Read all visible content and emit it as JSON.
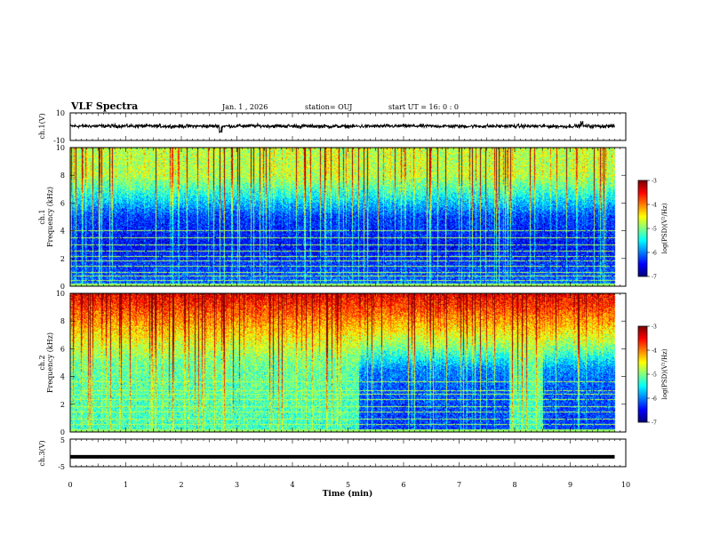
{
  "header": {
    "title": "VLF Spectra",
    "date": "Jan. 1 , 2026",
    "station": "station= OUJ",
    "start": "start UT = 16: 0 : 0"
  },
  "colors": {
    "trace": "#000000",
    "colormap": [
      "#00007f",
      "#0000ff",
      "#0080ff",
      "#00ffff",
      "#80ff80",
      "#ffff00",
      "#ff8000",
      "#ff0000",
      "#7f0000"
    ]
  },
  "chart_data": [
    {
      "type": "line",
      "name": "ch1-waveform",
      "ylabel": "ch.1(V)",
      "ylim": [
        -10,
        10
      ],
      "y_tick_labels": [
        "10",
        "-10"
      ],
      "x": [
        0,
        1,
        2,
        2.72,
        3,
        4,
        5,
        6,
        7,
        8,
        9,
        9.2,
        9.8
      ],
      "y": [
        0.4,
        0.5,
        0.3,
        -3.5,
        0.6,
        0.4,
        0.2,
        0.5,
        0.3,
        0.4,
        0.2,
        2.8,
        0.3
      ]
    },
    {
      "type": "heatmap",
      "name": "ch1-spectrogram",
      "ylabel": "ch.1\nFrequency (kHz)",
      "ylim": [
        0,
        10
      ],
      "y_ticks": [
        "0",
        "2",
        "4",
        "6",
        "8",
        "10"
      ],
      "colorbar_label": "log(PSD)(V²/Hz)",
      "colorbar_range": [
        -7,
        -3
      ],
      "colorbar_ticks": [
        "-3",
        "-4",
        "-5",
        "-6",
        "-7"
      ],
      "level_profile": [
        [
          0,
          -6.1
        ],
        [
          2,
          -6.4
        ],
        [
          3,
          -6.5
        ],
        [
          5,
          -6.3
        ],
        [
          6.5,
          -5.5
        ],
        [
          8,
          -4.8
        ],
        [
          10,
          -4.8
        ]
      ],
      "horizontal_lines_khz": [
        0.4,
        0.7,
        1.0,
        1.4,
        1.8,
        2.1,
        2.5,
        3.0,
        3.5,
        4.0
      ]
    },
    {
      "type": "heatmap",
      "name": "ch2-spectrogram",
      "ylabel": "ch.2\nFrequency (kHz)",
      "ylim": [
        0,
        10
      ],
      "y_ticks": [
        "0",
        "2",
        "4",
        "6",
        "8",
        "10"
      ],
      "colorbar_label": "log(PSD)(V²/Hz)",
      "colorbar_range": [
        -7,
        -3
      ],
      "colorbar_ticks": [
        "-3",
        "-4",
        "-5",
        "-6",
        "-7"
      ],
      "level_profile_before_5_2min": [
        [
          0,
          -5.3
        ],
        [
          3,
          -5.2
        ],
        [
          5,
          -5.1
        ],
        [
          6,
          -4.8
        ],
        [
          7.5,
          -4.3
        ],
        [
          9,
          -3.8
        ],
        [
          10,
          -3.5
        ]
      ],
      "level_profile_after_5_2min": [
        [
          0,
          -6.3
        ],
        [
          3,
          -6.2
        ],
        [
          4.5,
          -6.0
        ],
        [
          6,
          -5.1
        ],
        [
          7.5,
          -4.4
        ],
        [
          9,
          -3.8
        ],
        [
          10,
          -3.5
        ]
      ],
      "quiet_interval_min": [
        5.2,
        9.8
      ],
      "horizontal_lines_khz": [
        0.5,
        0.9,
        1.4,
        1.8,
        2.3,
        2.7,
        3.0,
        3.6
      ]
    },
    {
      "type": "line",
      "name": "ch3-trace",
      "ylabel": "ch.3(V)",
      "ylim": [
        -5,
        5
      ],
      "y_tick_labels": [
        "5",
        "-5"
      ],
      "x": [
        0,
        9.8
      ],
      "y": [
        -1.4,
        -1.4
      ]
    }
  ],
  "x_axis": {
    "label": "Time (min)",
    "range": [
      0,
      10
    ],
    "ticks": [
      "0",
      "1",
      "2",
      "3",
      "4",
      "5",
      "6",
      "7",
      "8",
      "9",
      "10"
    ],
    "data_end_min": 9.8
  }
}
